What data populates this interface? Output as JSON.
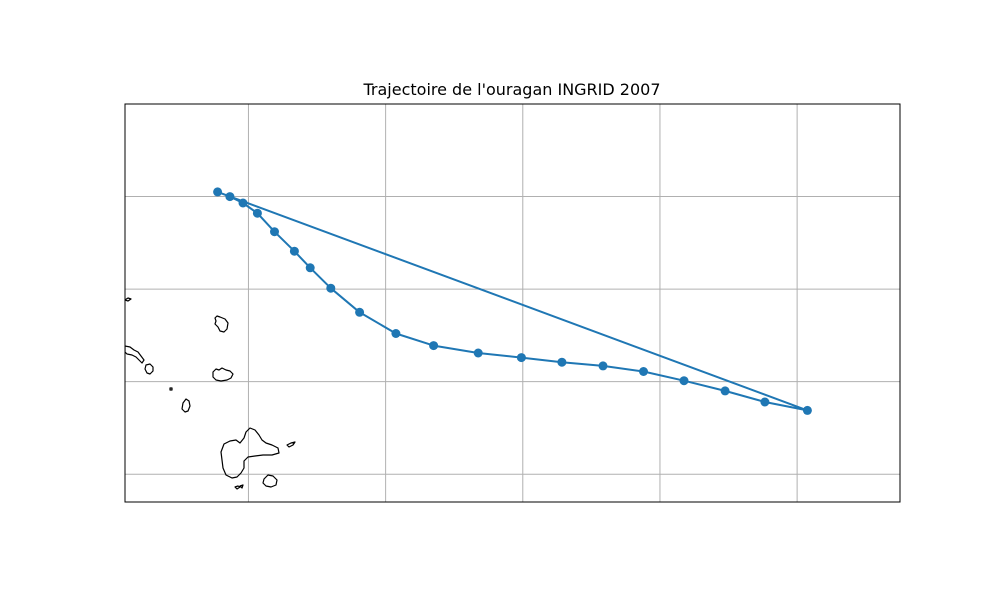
{
  "title": "Trajectoire de l'ouragan INGRID 2007",
  "colors": {
    "track": "#1f77b4",
    "grid": "#b0b0b0",
    "coast": "#000000"
  },
  "map": {
    "projection": "PlateCarree",
    "lon_range": [
      -62.5,
      -51.2
    ],
    "lat_range": [
      14.1,
      18.4
    ],
    "gridlines_lon": [
      -60.7,
      -58.7,
      -56.7,
      -54.7,
      -52.7
    ],
    "gridlines_lat": [
      17.4,
      16.4,
      15.4,
      14.4
    ],
    "tick_labels_shown": false
  },
  "chart_data": {
    "type": "scatter",
    "series": [
      {
        "markers": true,
        "closed_path_back_to_first": true,
        "points": [
          {
            "lon": -61.15,
            "lat": 17.45
          },
          {
            "lon": -60.97,
            "lat": 17.4
          },
          {
            "lon": -60.78,
            "lat": 17.33
          },
          {
            "lon": -60.57,
            "lat": 17.22
          },
          {
            "lon": -60.32,
            "lat": 17.02
          },
          {
            "lon": -60.03,
            "lat": 16.81
          },
          {
            "lon": -59.8,
            "lat": 16.63
          },
          {
            "lon": -59.5,
            "lat": 16.41
          },
          {
            "lon": -59.08,
            "lat": 16.15
          },
          {
            "lon": -58.55,
            "lat": 15.92
          },
          {
            "lon": -58.0,
            "lat": 15.79
          },
          {
            "lon": -57.35,
            "lat": 15.71
          },
          {
            "lon": -56.72,
            "lat": 15.66
          },
          {
            "lon": -56.13,
            "lat": 15.61
          },
          {
            "lon": -55.53,
            "lat": 15.57
          },
          {
            "lon": -54.94,
            "lat": 15.51
          },
          {
            "lon": -54.35,
            "lat": 15.41
          },
          {
            "lon": -53.75,
            "lat": 15.3
          },
          {
            "lon": -53.17,
            "lat": 15.18
          },
          {
            "lon": -52.55,
            "lat": 15.09
          }
        ]
      }
    ]
  }
}
